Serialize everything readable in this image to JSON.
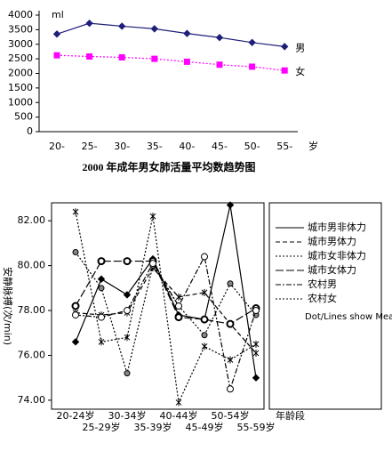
{
  "chart_data": [
    {
      "type": "line",
      "title": "2000 年成年男女肺活量平均数趋势图",
      "ylabel": "ml",
      "xlabel": "岁",
      "categories": [
        "20-",
        "25-",
        "30-",
        "35-",
        "40-",
        "45-",
        "50-",
        "55-"
      ],
      "series": [
        {
          "name": "男",
          "color": "#1f1f7a",
          "dash": "solid",
          "marker": "diamond",
          "values": [
            3350,
            3720,
            3620,
            3530,
            3370,
            3230,
            3060,
            2920
          ]
        },
        {
          "name": "女",
          "color": "#ff00ff",
          "dash": "dotted",
          "marker": "square",
          "values": [
            2620,
            2580,
            2550,
            2500,
            2400,
            2300,
            2230,
            2100
          ]
        }
      ],
      "ylim": [
        0,
        4000
      ],
      "yticks": [
        0,
        500,
        1000,
        1500,
        2000,
        2500,
        3000,
        3500,
        4000
      ],
      "legend": "line-end"
    },
    {
      "type": "line",
      "ylabel": "安静脉搏(次/min)",
      "xlabel": "年龄段",
      "annotation": "Dot/Lines show Means",
      "categories": [
        "20-24岁",
        "25-29岁",
        "30-34岁",
        "35-39岁",
        "40-44岁",
        "45-49岁",
        "50-54岁",
        "55-59岁"
      ],
      "series": [
        {
          "name": "城市男非体力",
          "color": "#000000",
          "dash": "solid",
          "marker": "diamond",
          "values": [
            76.6,
            79.4,
            78.7,
            80.3,
            77.8,
            77.6,
            82.7,
            75.0
          ]
        },
        {
          "name": "城市男体力",
          "color": "#000000",
          "dash": "dashed",
          "marker": "star",
          "values": [
            77.9,
            77.8,
            77.9,
            79.9,
            78.6,
            78.8,
            77.4,
            76.1
          ]
        },
        {
          "name": "城市女非体力",
          "color": "#000000",
          "dash": "dotted",
          "marker": "circle",
          "values": [
            80.6,
            79.0,
            75.2,
            80.0,
            78.2,
            76.9,
            79.2,
            77.8
          ]
        },
        {
          "name": "城市女体力",
          "color": "#000000",
          "dash": "longdash",
          "marker": "ring",
          "values": [
            78.2,
            80.2,
            80.2,
            80.2,
            77.7,
            77.6,
            77.4,
            78.1
          ]
        },
        {
          "name": "农村男",
          "color": "#000000",
          "dash": "dashdot",
          "marker": "circle-open",
          "values": [
            77.8,
            77.7,
            78.0,
            80.1,
            78.2,
            80.4,
            74.5,
            78.0
          ]
        },
        {
          "name": "农村女",
          "color": "#000000",
          "dash": "dotted",
          "marker": "star",
          "values": [
            82.4,
            76.6,
            76.8,
            82.2,
            73.9,
            76.4,
            75.8,
            76.5
          ]
        }
      ],
      "ylim": [
        73.6,
        82.8
      ],
      "yticks": [
        {
          "value": 74,
          "label": "74.00"
        },
        {
          "value": 76,
          "label": "76.00"
        },
        {
          "value": 78,
          "label": "78.00"
        },
        {
          "value": 80,
          "label": "80.00"
        },
        {
          "value": 82,
          "label": "82.00"
        }
      ],
      "legend": "right"
    }
  ]
}
